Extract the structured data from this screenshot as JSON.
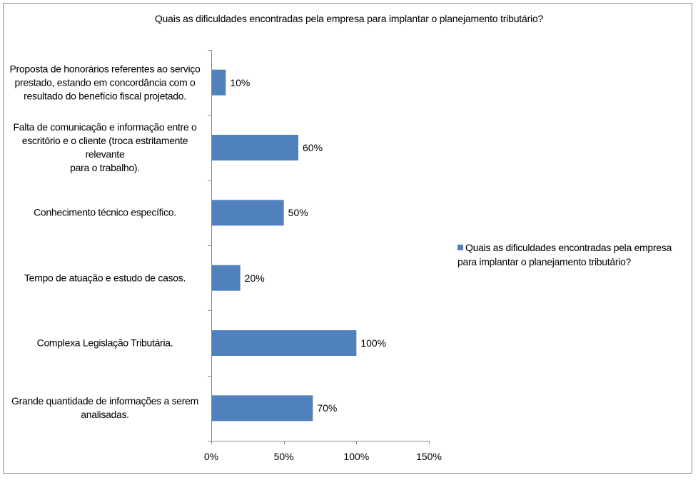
{
  "chart_data": {
    "type": "bar",
    "orientation": "horizontal",
    "title": "Quais as dificuldades encontradas pela empresa para implantar o planejamento tributário?",
    "categories": [
      "Proposta de honorários referentes ao serviço prestado, estando em concordância com o resultado do benefício fiscal projetado.",
      "Falta de comunicação e informação entre o escritório e o cliente (troca estritamente relevante para o trabalho).",
      "Conhecimento técnico específico.",
      "Tempo de atuação e estudo de casos.",
      "Complexa Legislação Tributária.",
      "Grande quantidade de informações a serem analisadas."
    ],
    "category_lines": [
      [
        "Proposta de honorários referentes ao serviço",
        "prestado, estando em concordância com o",
        "resultado do benefício fiscal projetado."
      ],
      [
        "Falta de comunicação e informação entre o",
        "escritório e o cliente (troca estritamente relevante",
        "para o trabalho)."
      ],
      [
        "Conhecimento técnico específico."
      ],
      [
        "Tempo de atuação e estudo de casos."
      ],
      [
        "Complexa Legislação Tributária."
      ],
      [
        "Grande quantidade de informações a serem",
        "analisadas."
      ]
    ],
    "series": [
      {
        "name": "Quais as dificuldades encontradas pela empresa para implantar o planejamento tributário?",
        "values": [
          10,
          60,
          50,
          20,
          100,
          70
        ],
        "data_labels": [
          "10%",
          "60%",
          "50%",
          "20%",
          "100%",
          "70%"
        ]
      }
    ],
    "xlim": [
      0,
      150
    ],
    "xticks": [
      0,
      50,
      100,
      150
    ],
    "xtick_labels": [
      "0%",
      "50%",
      "100%",
      "150%"
    ],
    "grid": false,
    "legend": "right",
    "bar_color": "#4f81bd"
  }
}
